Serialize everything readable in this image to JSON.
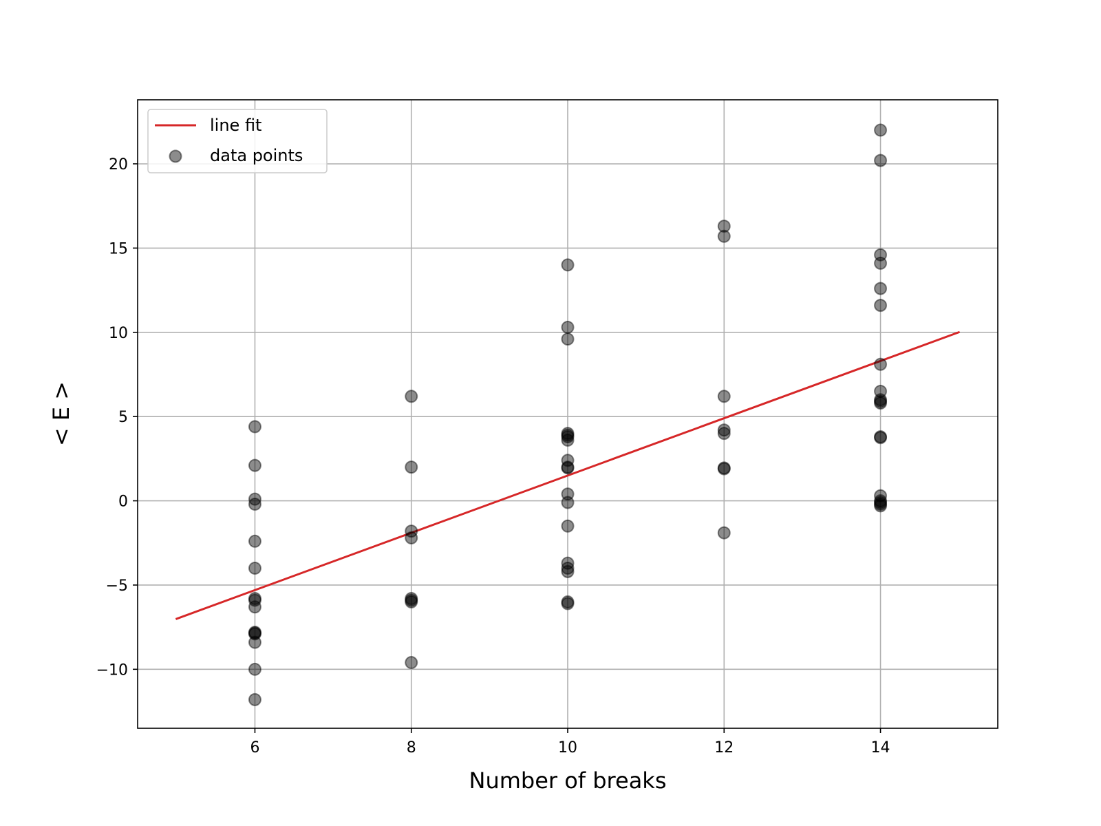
{
  "chart_data": {
    "type": "scatter",
    "xlabel": "Number of breaks",
    "ylabel": "< E >",
    "xlim": [
      4.5,
      15.5
    ],
    "ylim": [
      -13.5,
      23.8
    ],
    "xticks": [
      6,
      8,
      10,
      12,
      14
    ],
    "yticks": [
      -10,
      -5,
      0,
      5,
      10,
      15,
      20
    ],
    "xtick_labels": [
      "6",
      "8",
      "10",
      "12",
      "14"
    ],
    "ytick_labels": [
      "−10",
      "−5",
      "0",
      "5",
      "10",
      "15",
      "20"
    ],
    "grid": true,
    "legend_position": "top-left",
    "series": [
      {
        "name": "line fit",
        "kind": "line",
        "color": "#d62728",
        "x": [
          5,
          15
        ],
        "y": [
          -7.0,
          10.0
        ]
      },
      {
        "name": "data points",
        "kind": "scatter",
        "color": "#000000",
        "alpha": 0.45,
        "x": [
          6,
          6,
          6,
          6,
          6,
          6,
          6,
          6,
          6,
          6,
          6,
          6,
          6,
          6,
          6,
          8,
          8,
          8,
          8,
          8,
          8,
          8,
          8,
          10,
          10,
          10,
          10,
          10,
          10,
          10,
          10,
          10,
          10,
          10,
          10,
          10,
          10,
          10,
          10,
          10,
          10,
          12,
          12,
          12,
          12,
          12,
          12,
          12,
          12,
          14,
          14,
          14,
          14,
          14,
          14,
          14,
          14,
          14,
          14,
          14,
          14,
          14,
          14,
          14,
          14,
          14,
          14
        ],
        "y": [
          4.4,
          2.1,
          0.1,
          -0.2,
          -2.4,
          -4.0,
          -5.8,
          -5.9,
          -6.3,
          -7.8,
          -7.9,
          -8.4,
          -10.0,
          -11.8,
          -7.85,
          6.2,
          2.0,
          -1.8,
          -2.2,
          -5.8,
          -6.0,
          -9.6,
          -5.9,
          14.0,
          10.3,
          9.6,
          4.0,
          3.8,
          3.6,
          2.4,
          2.0,
          0.4,
          -0.1,
          -1.5,
          -3.7,
          -4.0,
          -4.2,
          -6.0,
          -6.1,
          1.95,
          3.9,
          16.3,
          15.7,
          6.2,
          4.2,
          4.0,
          1.9,
          1.95,
          -1.9,
          22.0,
          20.2,
          14.6,
          14.1,
          12.6,
          11.6,
          8.1,
          6.5,
          6.0,
          5.8,
          3.8,
          3.75,
          0.3,
          0.0,
          -0.2,
          -0.3,
          5.9,
          -0.1
        ]
      }
    ]
  }
}
